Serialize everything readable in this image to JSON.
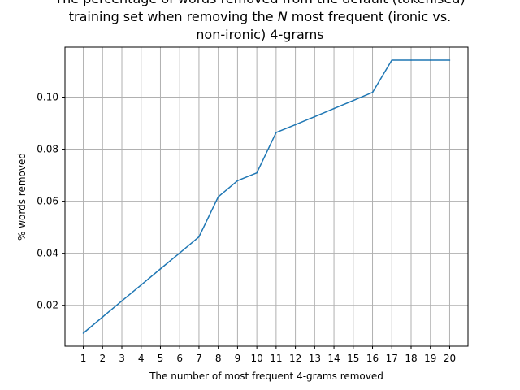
{
  "chart_data": {
    "type": "line",
    "title_lines": [
      "The percentage of words removed from the default (tokenised)",
      "training set when removing the N most frequent (ironic vs.",
      "non-ironic) 4-grams"
    ],
    "xlabel": "The number of most frequent 4-grams removed",
    "ylabel": "% words removed",
    "x": [
      1,
      2,
      3,
      4,
      5,
      6,
      7,
      8,
      9,
      10,
      11,
      12,
      13,
      14,
      15,
      16,
      17,
      18,
      19,
      20
    ],
    "series": [
      {
        "color": "#1f77b4",
        "values": [
          0.0093,
          0.0155,
          0.0217,
          0.0278,
          0.034,
          0.0401,
          0.0463,
          0.0617,
          0.0679,
          0.0709,
          0.0864,
          0.0894,
          0.0925,
          0.0956,
          0.0987,
          0.1018,
          0.1142,
          0.1142,
          0.1142,
          0.1142
        ]
      }
    ],
    "xlim": [
      0.05,
      20.95
    ],
    "ylim": [
      0.0043,
      0.1192
    ],
    "xticks": [
      1,
      2,
      3,
      4,
      5,
      6,
      7,
      8,
      9,
      10,
      11,
      12,
      13,
      14,
      15,
      16,
      17,
      18,
      19,
      20
    ],
    "yticks": [
      0.02,
      0.04,
      0.06,
      0.08,
      0.1
    ],
    "ytick_labels": [
      "0.02",
      "0.04",
      "0.06",
      "0.08",
      "0.10"
    ],
    "grid": true
  }
}
